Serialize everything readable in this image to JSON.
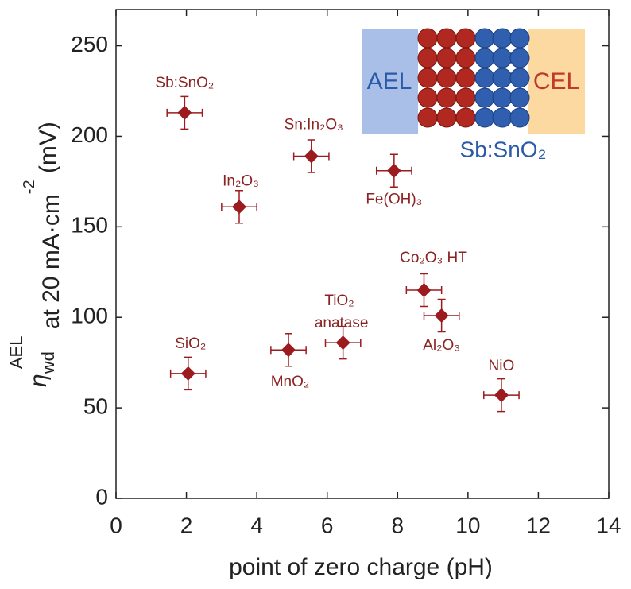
{
  "chart_data": {
    "type": "scatter",
    "x_label": "point of zero charge (pH)",
    "y_label_parts": [
      "η",
      "wd",
      "AEL",
      " at 20 mA·cm",
      "-2",
      " (mV)"
    ],
    "labels": [
      "Sb:SnO₂",
      "In₂O₃",
      "Sn:In₂O₃",
      "Fe(OH)₃",
      "Co₂O₃ HT",
      "Al₂O₃",
      "TiO₂ anatase",
      "MnO₂",
      "SiO₂",
      "NiO"
    ],
    "x": [
      1.95,
      3.5,
      5.55,
      7.9,
      8.75,
      9.25,
      6.45,
      4.9,
      2.05,
      10.95
    ],
    "y": [
      213,
      161,
      189,
      181,
      115,
      101,
      86,
      82,
      69,
      57
    ],
    "x_error": [
      0.5,
      0.5,
      0.5,
      0.5,
      0.5,
      0.5,
      0.5,
      0.5,
      0.5,
      0.5
    ],
    "y_error": [
      9,
      9,
      9,
      9,
      9,
      9,
      9,
      9,
      9,
      9
    ],
    "color": "#9b1b1e",
    "xlim": [
      0,
      14
    ],
    "xticks": [
      0,
      2,
      4,
      6,
      8,
      10,
      12,
      14
    ],
    "ylim": [
      0,
      270
    ],
    "yticks": [
      0,
      50,
      100,
      150,
      200,
      250
    ],
    "inset": {
      "left_label": "AEL",
      "right_label": "CEL",
      "caption": "Sb:SnO₂"
    }
  }
}
